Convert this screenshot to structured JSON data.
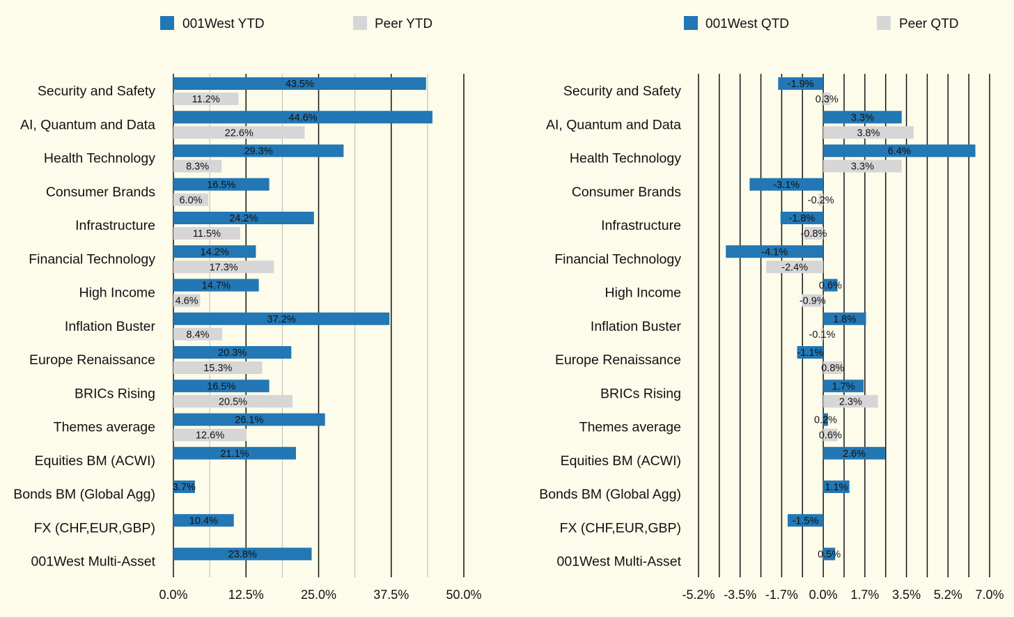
{
  "colors": {
    "background": "#fdfbea",
    "fund": "#2277b4",
    "peer": "#d6d6d6",
    "text": "#111111",
    "grid_major": "#111111",
    "grid_minor": "#b8b8b8"
  },
  "chart_data": [
    {
      "type": "bar",
      "orientation": "horizontal",
      "categories": [
        "Security and Safety",
        "AI, Quantum and Data",
        "Health Technology",
        "Consumer Brands",
        "Infrastructure",
        "Financial Technology",
        "High Income",
        "Inflation Buster",
        "Europe Renaissance",
        "BRICs Rising",
        "Themes average",
        "Equities BM (ACWI)",
        "Bonds BM (Global Agg)",
        "FX (CHF,EUR,GBP)",
        "001West Multi-Asset"
      ],
      "series": [
        {
          "name": "001West YTD",
          "color": "#2277b4",
          "values": [
            43.5,
            44.6,
            29.3,
            16.5,
            24.2,
            14.2,
            14.7,
            37.2,
            20.3,
            16.5,
            26.1,
            21.1,
            3.7,
            10.4,
            23.8
          ],
          "labels": [
            "43.5%",
            "44.6%",
            "29.3%",
            "16.5%",
            "24.2%",
            "14.2%",
            "14.7%",
            "37.2%",
            "20.3%",
            "16.5%",
            "26.1%",
            "21.1%",
            "3.7%",
            "10.4%",
            "23.8%"
          ]
        },
        {
          "name": "Peer YTD",
          "color": "#d6d6d6",
          "values": [
            11.2,
            22.6,
            8.3,
            6.0,
            11.5,
            17.3,
            4.6,
            8.4,
            15.3,
            20.5,
            12.6,
            null,
            null,
            null,
            null
          ],
          "labels": [
            "11.2%",
            "22.6%",
            "8.3%",
            "6.0%",
            "11.5%",
            "17.3%",
            "4.6%",
            "8.4%",
            "15.3%",
            "20.5%",
            "12.6%",
            null,
            null,
            null,
            null
          ]
        }
      ],
      "xlim": [
        0,
        50
      ],
      "ticks": [
        0,
        12.5,
        25,
        37.5,
        50
      ],
      "tick_labels": [
        "0.0%",
        "12.5%",
        "25.0%",
        "37.5%",
        "50.0%"
      ],
      "legend_position": "top"
    },
    {
      "type": "bar",
      "orientation": "horizontal",
      "categories": [
        "Security and Safety",
        "AI, Quantum and Data",
        "Health Technology",
        "Consumer Brands",
        "Infrastructure",
        "Financial Technology",
        "High Income",
        "Inflation Buster",
        "Europe Renaissance",
        "BRICs Rising",
        "Themes average",
        "Equities BM (ACWI)",
        "Bonds BM (Global Agg)",
        "FX (CHF,EUR,GBP)",
        "001West Multi-Asset"
      ],
      "series": [
        {
          "name": "001West QTD",
          "color": "#2277b4",
          "values": [
            -1.9,
            3.3,
            6.4,
            -3.1,
            -1.8,
            -4.1,
            0.6,
            1.8,
            -1.1,
            1.7,
            0.2,
            2.6,
            1.1,
            -1.5,
            0.5
          ],
          "labels": [
            "-1.9%",
            "3.3%",
            "6.4%",
            "-3.1%",
            "-1.8%",
            "-4.1%",
            "0.6%",
            "1.8%",
            "-1.1%",
            "1.7%",
            "0.2%",
            "2.6%",
            "1.1%",
            "-1.5%",
            "0.5%"
          ]
        },
        {
          "name": "Peer QTD",
          "color": "#d6d6d6",
          "values": [
            0.3,
            3.8,
            3.3,
            -0.2,
            -0.8,
            -2.4,
            -0.9,
            -0.1,
            0.8,
            2.3,
            0.6,
            null,
            null,
            null,
            null
          ],
          "labels": [
            "0.3%",
            "3.8%",
            "3.3%",
            "-0.2%",
            "-0.8%",
            "-2.4%",
            "-0.9%",
            "-0.1%",
            "0.8%",
            "2.3%",
            "0.6%",
            null,
            null,
            null,
            null
          ]
        }
      ],
      "xlim": [
        -5.25,
        7.0
      ],
      "ticks": [
        -5.25,
        -3.5,
        -1.75,
        0,
        1.75,
        3.5,
        5.25,
        7.0
      ],
      "tick_labels": [
        "-5.2%",
        "-3.5%",
        "-1.7%",
        "0.0%",
        "1.7%",
        "3.5%",
        "5.2%",
        "7.0%"
      ],
      "legend_position": "top"
    }
  ]
}
